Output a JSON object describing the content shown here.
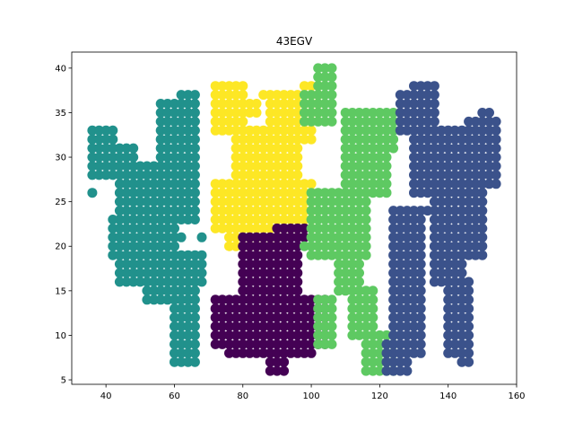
{
  "chart_data": {
    "type": "scatter",
    "title": "43EGV",
    "xlabel": "",
    "ylabel": "",
    "xlim": [
      30,
      160
    ],
    "ylim": [
      4.5,
      41.8
    ],
    "xticks": [
      40,
      60,
      80,
      100,
      120,
      140,
      160
    ],
    "yticks": [
      5,
      10,
      15,
      20,
      25,
      30,
      35,
      40
    ],
    "grid": false,
    "legend": "none",
    "series": [
      {
        "color": "#21918c",
        "regions": [
          {
            "x": [
              36,
              42
            ],
            "y": [
              28,
              33
            ]
          },
          {
            "x": [
              36,
              48
            ],
            "y": [
              29,
              31
            ]
          },
          {
            "x": [
              44,
              66
            ],
            "y": [
              23,
              29
            ]
          },
          {
            "x": [
              42,
              60
            ],
            "y": [
              19,
              23
            ]
          },
          {
            "x": [
              44,
              68
            ],
            "y": [
              16,
              19
            ]
          },
          {
            "x": [
              52,
              66
            ],
            "y": [
              14,
              16
            ]
          },
          {
            "x": [
              60,
              66
            ],
            "y": [
              7,
              14
            ]
          },
          {
            "x": [
              56,
              66
            ],
            "y": [
              29,
              36
            ]
          },
          {
            "x": [
              62,
              66
            ],
            "y": [
              36,
              37
            ]
          }
        ],
        "singles": [
          [
            36,
            26
          ],
          [
            44,
            20
          ],
          [
            62,
            21
          ],
          [
            68,
            21
          ]
        ]
      },
      {
        "color": "#fde725",
        "regions": [
          {
            "x": [
              72,
              76
            ],
            "y": [
              33,
              38
            ]
          },
          {
            "x": [
              76,
              80
            ],
            "y": [
              34,
              38
            ]
          },
          {
            "x": [
              80,
              84
            ],
            "y": [
              35,
              36
            ]
          },
          {
            "x": [
              88,
              100
            ],
            "y": [
              32,
              37
            ]
          },
          {
            "x": [
              98,
              102
            ],
            "y": [
              35,
              38
            ]
          },
          {
            "x": [
              78,
              96
            ],
            "y": [
              27,
              33
            ]
          },
          {
            "x": [
              72,
              100
            ],
            "y": [
              22,
              27
            ]
          },
          {
            "x": [
              76,
              90
            ],
            "y": [
              20,
              22
            ]
          }
        ],
        "singles": [
          [
            72,
            33
          ],
          [
            86,
            37
          ]
        ]
      },
      {
        "color": "#440154",
        "regions": [
          {
            "x": [
              72,
              104
            ],
            "y": [
              9,
              14
            ]
          },
          {
            "x": [
              76,
              100
            ],
            "y": [
              8,
              9
            ]
          },
          {
            "x": [
              80,
              96
            ],
            "y": [
              14,
              21
            ]
          },
          {
            "x": [
              90,
              98
            ],
            "y": [
              21,
              22
            ]
          },
          {
            "x": [
              88,
              92
            ],
            "y": [
              6,
              8
            ]
          }
        ],
        "singles": [
          [
            72,
            14
          ],
          [
            74,
            13
          ],
          [
            96,
            18
          ]
        ]
      },
      {
        "color": "#5ec962",
        "regions": [
          {
            "x": [
              102,
              106
            ],
            "y": [
              37,
              40
            ]
          },
          {
            "x": [
              98,
              106
            ],
            "y": [
              34,
              37
            ]
          },
          {
            "x": [
              100,
              116
            ],
            "y": [
              19,
              26
            ]
          },
          {
            "x": [
              110,
              122
            ],
            "y": [
              26,
              35
            ]
          },
          {
            "x": [
              114,
              124
            ],
            "y": [
              31,
              35
            ]
          },
          {
            "x": [
              108,
              114
            ],
            "y": [
              15,
              19
            ]
          },
          {
            "x": [
              102,
              106
            ],
            "y": [
              9,
              14
            ]
          },
          {
            "x": [
              112,
              118
            ],
            "y": [
              10,
              15
            ]
          },
          {
            "x": [
              116,
              124
            ],
            "y": [
              6,
              10
            ]
          }
        ],
        "singles": [
          [
            98,
            20
          ],
          [
            120,
            6
          ],
          [
            122,
            6
          ]
        ]
      },
      {
        "color": "#3b528b",
        "regions": [
          {
            "x": [
              126,
              136
            ],
            "y": [
              33,
              37
            ]
          },
          {
            "x": [
              130,
              136
            ],
            "y": [
              37,
              38
            ]
          },
          {
            "x": [
              130,
              144
            ],
            "y": [
              26,
              33
            ]
          },
          {
            "x": [
              136,
              144
            ],
            "y": [
              16,
              26
            ]
          },
          {
            "x": [
              140,
              146
            ],
            "y": [
              8,
              16
            ]
          },
          {
            "x": [
              144,
              146
            ],
            "y": [
              7,
              8
            ]
          },
          {
            "x": [
              124,
              132
            ],
            "y": [
              8,
              24
            ]
          },
          {
            "x": [
              122,
              128
            ],
            "y": [
              6,
              9
            ]
          },
          {
            "x": [
              146,
              154
            ],
            "y": [
              27,
              34
            ]
          },
          {
            "x": [
              142,
              150
            ],
            "y": [
              19,
              27
            ]
          },
          {
            "x": [
              150,
              152
            ],
            "y": [
              34,
              35
            ]
          }
        ],
        "singles": [
          [
            150,
            35
          ],
          [
            134,
            24
          ]
        ]
      }
    ]
  }
}
